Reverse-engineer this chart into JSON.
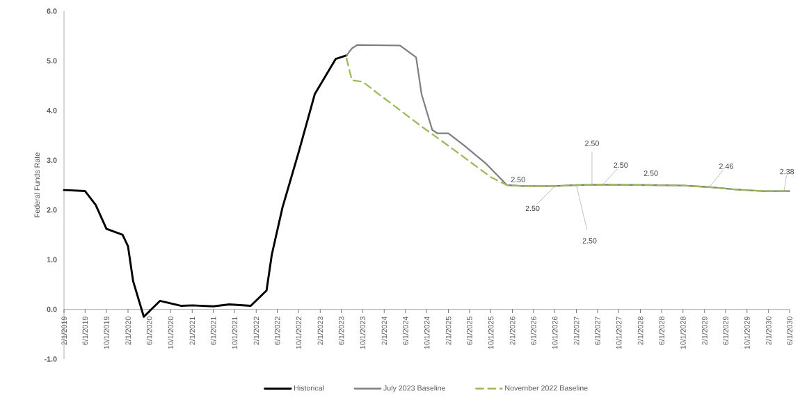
{
  "chart_data": {
    "type": "line",
    "ylabel": "Federal Funds Rate",
    "legend": "bottom",
    "xlim": [
      "2019-02-01",
      "2030-06-01"
    ],
    "xticks": [
      {
        "value": "2019-02-01",
        "label": "2/1/2019"
      },
      {
        "value": "2019-06-01",
        "label": "6/1/2019"
      },
      {
        "value": "2019-10-01",
        "label": "10/1/2019"
      },
      {
        "value": "2020-02-01",
        "label": "2/1/2020"
      },
      {
        "value": "2020-06-01",
        "label": "6/1/2020"
      },
      {
        "value": "2020-10-01",
        "label": "10/1/2020"
      },
      {
        "value": "2021-02-01",
        "label": "2/1/2021"
      },
      {
        "value": "2021-06-01",
        "label": "6/1/2021"
      },
      {
        "value": "2021-10-01",
        "label": "10/1/2021"
      },
      {
        "value": "2022-02-01",
        "label": "2/1/2022"
      },
      {
        "value": "2022-06-01",
        "label": "6/1/2022"
      },
      {
        "value": "2022-10-01",
        "label": "10/1/2022"
      },
      {
        "value": "2023-02-01",
        "label": "2/1/2023"
      },
      {
        "value": "2023-06-01",
        "label": "6/1/2023"
      },
      {
        "value": "2023-10-01",
        "label": "10/1/2023"
      },
      {
        "value": "2024-02-01",
        "label": "2/1/2024"
      },
      {
        "value": "2024-06-01",
        "label": "6/1/2024"
      },
      {
        "value": "2024-10-01",
        "label": "10/1/2024"
      },
      {
        "value": "2025-02-01",
        "label": "2/1/2025"
      },
      {
        "value": "2025-06-01",
        "label": "6/1/2025"
      },
      {
        "value": "2025-10-01",
        "label": "10/1/2025"
      },
      {
        "value": "2026-02-01",
        "label": "2/1/2026"
      },
      {
        "value": "2026-06-01",
        "label": "6/1/2026"
      },
      {
        "value": "2026-10-01",
        "label": "10/1/2026"
      },
      {
        "value": "2027-02-01",
        "label": "2/1/2027"
      },
      {
        "value": "2027-06-01",
        "label": "6/1/2027"
      },
      {
        "value": "2027-10-01",
        "label": "10/1/2027"
      },
      {
        "value": "2028-02-01",
        "label": "2/1/2028"
      },
      {
        "value": "2028-06-01",
        "label": "6/1/2028"
      },
      {
        "value": "2028-10-01",
        "label": "10/1/2028"
      },
      {
        "value": "2029-02-01",
        "label": "2/1/2029"
      },
      {
        "value": "2029-06-01",
        "label": "6/1/2029"
      },
      {
        "value": "2029-10-01",
        "label": "10/1/2029"
      },
      {
        "value": "2030-02-01",
        "label": "2/1/2030"
      },
      {
        "value": "2030-06-01",
        "label": "6/1/2030"
      }
    ],
    "ylim": [
      -1,
      6
    ],
    "yticks": [
      {
        "value": -1,
        "label": "-1.0"
      },
      {
        "value": 0,
        "label": "0.0"
      },
      {
        "value": 1,
        "label": "1.0"
      },
      {
        "value": 2,
        "label": "2.0"
      },
      {
        "value": 3,
        "label": "3.0"
      },
      {
        "value": 4,
        "label": "4.0"
      },
      {
        "value": 5,
        "label": "5.0"
      },
      {
        "value": 6,
        "label": "6.0"
      }
    ],
    "series": [
      {
        "name": "Historical",
        "color": "#000000",
        "line_style": "solid",
        "x": [
          "2019-02-01",
          "2019-06-01",
          "2019-08-01",
          "2019-10-01",
          "2020-01-01",
          "2020-02-01",
          "2020-03-01",
          "2020-05-01",
          "2020-08-01",
          "2020-12-01",
          "2021-02-01",
          "2021-06-01",
          "2021-09-01",
          "2022-01-01",
          "2022-04-01",
          "2022-05-01",
          "2022-07-01",
          "2022-10-01",
          "2023-01-01",
          "2023-05-01",
          "2023-07-01"
        ],
        "values": [
          2.4,
          2.38,
          2.1,
          1.62,
          1.5,
          1.27,
          0.57,
          -0.15,
          0.17,
          0.07,
          0.08,
          0.06,
          0.1,
          0.07,
          0.38,
          1.1,
          2.05,
          3.16,
          4.33,
          5.04,
          5.11
        ]
      },
      {
        "name": "July 2023 Baseline",
        "color": "#7f7f7f",
        "line_style": "solid",
        "x": [
          "2023-07-01",
          "2023-08-01",
          "2023-09-01",
          "2024-05-01",
          "2024-08-01",
          "2024-09-01",
          "2024-11-01",
          "2024-12-01",
          "2025-02-01",
          "2025-05-01",
          "2025-09-01",
          "2026-01-01",
          "2026-04-01",
          "2026-10-01",
          "2027-02-01",
          "2027-07-01",
          "2028-04-01",
          "2028-10-01",
          "2029-03-01",
          "2029-08-01",
          "2030-01-01",
          "2030-06-01"
        ],
        "values": [
          5.11,
          5.25,
          5.32,
          5.31,
          5.07,
          4.33,
          3.61,
          3.54,
          3.54,
          3.3,
          2.94,
          2.5,
          2.48,
          2.48,
          2.5,
          2.51,
          2.5,
          2.49,
          2.46,
          2.41,
          2.38,
          2.38
        ]
      },
      {
        "name": "November 2022 Baseline",
        "color": "#9bbb59",
        "line_style": "dashed",
        "x": [
          "2023-07-01",
          "2023-08-01",
          "2023-10-01",
          "2024-01-01",
          "2024-09-01",
          "2025-03-01",
          "2025-10-01",
          "2026-01-01",
          "2026-04-01",
          "2026-10-01",
          "2027-02-01",
          "2027-07-01",
          "2028-04-01",
          "2028-10-01",
          "2029-03-01",
          "2029-08-01",
          "2030-01-01",
          "2030-06-01"
        ],
        "values": [
          5.05,
          4.61,
          4.58,
          4.33,
          3.68,
          3.22,
          2.66,
          2.5,
          2.48,
          2.48,
          2.5,
          2.51,
          2.5,
          2.49,
          2.46,
          2.41,
          2.38,
          2.38
        ]
      }
    ],
    "annotations": [
      {
        "text": "2.50",
        "x": "2026-01-01",
        "y": 2.5
      },
      {
        "text": "2.50",
        "x": "2026-10-01",
        "y": 2.48
      },
      {
        "text": "2.50",
        "x": "2027-05-01",
        "y": 2.5
      },
      {
        "text": "2.50",
        "x": "2027-02-01",
        "y": 2.5
      },
      {
        "text": "2.50",
        "x": "2027-07-01",
        "y": 2.51
      },
      {
        "text": "2.50",
        "x": "2028-04-01",
        "y": 2.5
      },
      {
        "text": "2.46",
        "x": "2029-03-01",
        "y": 2.46
      },
      {
        "text": "2.38",
        "x": "2030-05-01",
        "y": 2.38
      }
    ]
  }
}
